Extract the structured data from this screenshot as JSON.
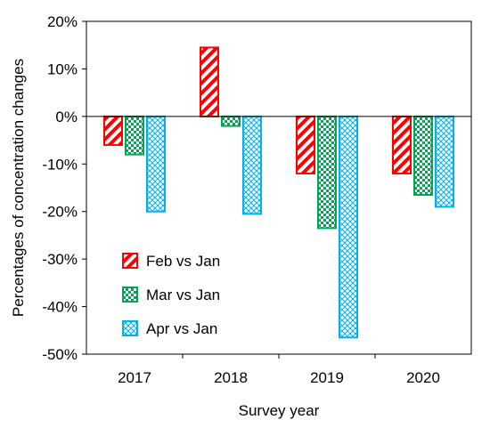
{
  "chart_data": {
    "type": "bar",
    "categories": [
      "2017",
      "2018",
      "2019",
      "2020"
    ],
    "series": [
      {
        "name": "Feb vs Jan",
        "values": [
          -6,
          14.5,
          -12,
          -12
        ],
        "color": "#ff0000",
        "pattern": "diagonal-stripes"
      },
      {
        "name": "Mar vs Jan",
        "values": [
          -8,
          -2,
          -23.5,
          -16.5
        ],
        "color": "#00a651",
        "pattern": "checkerboard"
      },
      {
        "name": "Apr vs Jan",
        "values": [
          -20,
          -20.5,
          -46.5,
          -19
        ],
        "color": "#00b0f0",
        "pattern": "crosshatch"
      }
    ],
    "xlabel": "Survey year",
    "ylabel": "Percentages of concentration changes",
    "ylim": [
      -50,
      20
    ],
    "yticks": [
      20,
      10,
      0,
      -10,
      -20,
      -30,
      -40,
      -50
    ],
    "ytick_labels": [
      "20%",
      "10%",
      "0%",
      "-10%",
      "-20%",
      "-30%",
      "-40%",
      "-50%"
    ],
    "grid": false,
    "legend_position": "bottom-left inside"
  }
}
